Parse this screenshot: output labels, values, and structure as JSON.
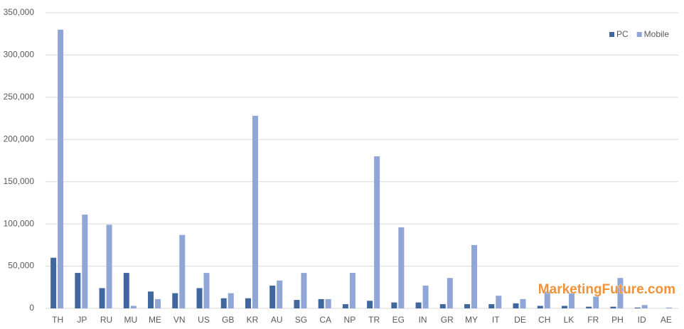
{
  "chart_data": {
    "type": "bar",
    "categories": [
      "TH",
      "JP",
      "RU",
      "MU",
      "ME",
      "VN",
      "US",
      "GB",
      "KR",
      "AU",
      "SG",
      "CA",
      "NP",
      "TR",
      "EG",
      "IN",
      "GR",
      "MY",
      "IT",
      "DE",
      "CH",
      "LK",
      "FR",
      "PH",
      "ID",
      "AE"
    ],
    "series": [
      {
        "name": "PC",
        "color": "#41679f",
        "values": [
          60000,
          42000,
          24000,
          42000,
          20000,
          18000,
          24000,
          12000,
          12000,
          27000,
          10000,
          11000,
          5000,
          9000,
          7000,
          7000,
          5000,
          5000,
          5000,
          6000,
          3000,
          3000,
          2000,
          2000,
          1000,
          0
        ]
      },
      {
        "name": "Mobile",
        "color": "#8fa6d6",
        "values": [
          330000,
          111000,
          99000,
          3000,
          11000,
          87000,
          42000,
          18000,
          228000,
          33000,
          42000,
          11000,
          42000,
          180000,
          96000,
          27000,
          36000,
          75000,
          15000,
          11000,
          20000,
          18000,
          14000,
          36000,
          4000,
          1000
        ]
      }
    ],
    "ylim": [
      0,
      350000
    ],
    "yticks": [
      {
        "value": 0,
        "label": "0"
      },
      {
        "value": 50000,
        "label": "50,000"
      },
      {
        "value": 100000,
        "label": "100,000"
      },
      {
        "value": 150000,
        "label": "150,000"
      },
      {
        "value": 200000,
        "label": "200,000"
      },
      {
        "value": 250000,
        "label": "250,000"
      },
      {
        "value": 300000,
        "label": "300,000"
      },
      {
        "value": 350000,
        "label": "350,000"
      }
    ],
    "grid": true,
    "legend": "top-right",
    "annotation": "MarketingFuture.com"
  }
}
